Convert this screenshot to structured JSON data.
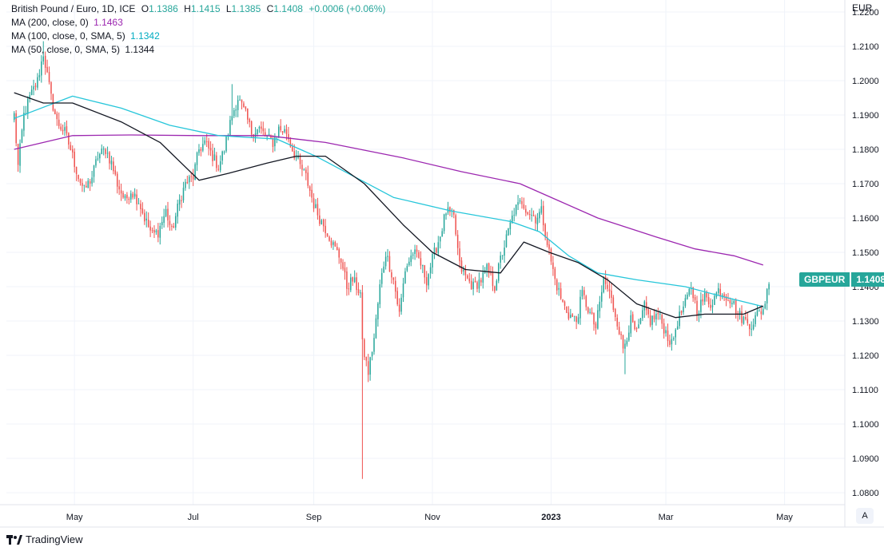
{
  "legend": {
    "title": "British Pound / Euro, 1D, ICE",
    "ohlc": [
      {
        "k": "O",
        "v": "1.1386"
      },
      {
        "k": "H",
        "v": "1.1415"
      },
      {
        "k": "L",
        "v": "1.1385"
      },
      {
        "k": "C",
        "v": "1.1408"
      }
    ],
    "change": "+0.0006 (+0.06%)",
    "ma": [
      {
        "label": "MA (200, close, 0)",
        "value": "1.1463",
        "color": "#9c27b0"
      },
      {
        "label": "MA (100, close, 0, SMA, 5)",
        "value": "1.1342",
        "color": "#26c6da"
      },
      {
        "label": "MA (50, close, 0, SMA, 5)",
        "value": "1.1344",
        "color": "#131722"
      }
    ]
  },
  "currency": "EUR",
  "price_tag": {
    "symbol": "GBPEUR",
    "value": "1.1408"
  },
  "brand": "TradingView",
  "auto_label": "A",
  "chart_data": {
    "type": "candlestick",
    "ylim": [
      1.0765,
      1.2235
    ],
    "y_ticks": [
      "1.2200",
      "1.2100",
      "1.2000",
      "1.1900",
      "1.1800",
      "1.1700",
      "1.1600",
      "1.1500",
      "1.1400",
      "1.1300",
      "1.1200",
      "1.1100",
      "1.1000",
      "1.0900",
      "1.0800"
    ],
    "x_ticks": [
      {
        "label": "May",
        "pos": 31,
        "bold": false
      },
      {
        "label": "Jul",
        "pos": 92,
        "bold": false
      },
      {
        "label": "Sep",
        "pos": 154,
        "bold": false
      },
      {
        "label": "Nov",
        "pos": 215,
        "bold": false
      },
      {
        "label": "2023",
        "pos": 276,
        "bold": true
      },
      {
        "label": "Mar",
        "pos": 335,
        "bold": false
      },
      {
        "label": "May",
        "pos": 396,
        "bold": false
      }
    ],
    "x_range": [
      -4,
      427
    ],
    "anchors": [
      [
        0,
        1.19
      ],
      [
        2,
        1.175
      ],
      [
        5,
        1.19
      ],
      [
        8,
        1.195
      ],
      [
        12,
        1.2
      ],
      [
        15,
        1.208
      ],
      [
        19,
        1.195
      ],
      [
        22,
        1.188
      ],
      [
        26,
        1.185
      ],
      [
        29,
        1.18
      ],
      [
        33,
        1.172
      ],
      [
        36,
        1.168
      ],
      [
        40,
        1.172
      ],
      [
        43,
        1.178
      ],
      [
        47,
        1.18
      ],
      [
        50,
        1.176
      ],
      [
        53,
        1.17
      ],
      [
        57,
        1.165
      ],
      [
        60,
        1.168
      ],
      [
        64,
        1.165
      ],
      [
        67,
        1.16
      ],
      [
        71,
        1.155
      ],
      [
        74,
        1.156
      ],
      [
        78,
        1.162
      ],
      [
        81,
        1.156
      ],
      [
        85,
        1.165
      ],
      [
        88,
        1.17
      ],
      [
        92,
        1.172
      ],
      [
        95,
        1.18
      ],
      [
        98,
        1.182
      ],
      [
        102,
        1.178
      ],
      [
        105,
        1.175
      ],
      [
        108,
        1.18
      ],
      [
        112,
        1.19
      ],
      [
        115,
        1.195
      ],
      [
        119,
        1.19
      ],
      [
        122,
        1.185
      ],
      [
        126,
        1.186
      ],
      [
        129,
        1.184
      ],
      [
        133,
        1.182
      ],
      [
        136,
        1.186
      ],
      [
        140,
        1.185
      ],
      [
        143,
        1.18
      ],
      [
        147,
        1.175
      ],
      [
        150,
        1.172
      ],
      [
        154,
        1.164
      ],
      [
        157,
        1.16
      ],
      [
        161,
        1.156
      ],
      [
        164,
        1.152
      ],
      [
        168,
        1.148
      ],
      [
        171,
        1.14
      ],
      [
        174,
        1.142
      ],
      [
        178,
        1.138
      ],
      [
        179,
        1.123
      ],
      [
        182,
        1.115
      ],
      [
        185,
        1.125
      ],
      [
        188,
        1.14
      ],
      [
        191,
        1.15
      ],
      [
        195,
        1.142
      ],
      [
        198,
        1.132
      ],
      [
        201,
        1.145
      ],
      [
        205,
        1.15
      ],
      [
        208,
        1.148
      ],
      [
        212,
        1.142
      ],
      [
        215,
        1.148
      ],
      [
        219,
        1.155
      ],
      [
        222,
        1.162
      ],
      [
        226,
        1.16
      ],
      [
        229,
        1.146
      ],
      [
        233,
        1.142
      ],
      [
        236,
        1.14
      ],
      [
        240,
        1.142
      ],
      [
        243,
        1.145
      ],
      [
        247,
        1.14
      ],
      [
        250,
        1.148
      ],
      [
        254,
        1.156
      ],
      [
        257,
        1.162
      ],
      [
        261,
        1.165
      ],
      [
        264,
        1.162
      ],
      [
        268,
        1.16
      ],
      [
        271,
        1.162
      ],
      [
        275,
        1.15
      ],
      [
        278,
        1.142
      ],
      [
        282,
        1.135
      ],
      [
        285,
        1.132
      ],
      [
        289,
        1.13
      ],
      [
        292,
        1.138
      ],
      [
        296,
        1.132
      ],
      [
        299,
        1.128
      ],
      [
        303,
        1.142
      ],
      [
        306,
        1.138
      ],
      [
        310,
        1.13
      ],
      [
        313,
        1.122
      ],
      [
        317,
        1.13
      ],
      [
        320,
        1.126
      ],
      [
        324,
        1.134
      ],
      [
        327,
        1.13
      ],
      [
        331,
        1.132
      ],
      [
        334,
        1.128
      ],
      [
        338,
        1.123
      ],
      [
        341,
        1.13
      ],
      [
        345,
        1.135
      ],
      [
        348,
        1.14
      ],
      [
        351,
        1.133
      ],
      [
        355,
        1.137
      ],
      [
        358,
        1.135
      ],
      [
        362,
        1.139
      ],
      [
        365,
        1.138
      ],
      [
        369,
        1.136
      ],
      [
        372,
        1.132
      ],
      [
        376,
        1.13
      ],
      [
        379,
        1.129
      ],
      [
        382,
        1.132
      ],
      [
        385,
        1.1335
      ],
      [
        388,
        1.1408
      ]
    ],
    "extremes": [
      [
        179,
        1.084
      ],
      [
        15,
        1.2115
      ],
      [
        112,
        1.199
      ],
      [
        314,
        1.1145
      ]
    ],
    "series": [
      {
        "name": "MA (200, close, 0)",
        "color": "#9c27b0",
        "values": [
          [
            0,
            1.18
          ],
          [
            30,
            1.184
          ],
          [
            60,
            1.1842
          ],
          [
            95,
            1.184
          ],
          [
            130,
            1.184
          ],
          [
            160,
            1.182
          ],
          [
            200,
            1.1775
          ],
          [
            230,
            1.1735
          ],
          [
            260,
            1.17
          ],
          [
            280,
            1.165
          ],
          [
            300,
            1.16
          ],
          [
            330,
            1.1545
          ],
          [
            350,
            1.151
          ],
          [
            370,
            1.149
          ],
          [
            385,
            1.1463
          ]
        ]
      },
      {
        "name": "MA (100, close, 0, SMA, 5)",
        "color": "#26c6da",
        "values": [
          [
            0,
            1.189
          ],
          [
            30,
            1.1955
          ],
          [
            55,
            1.192
          ],
          [
            80,
            1.187
          ],
          [
            105,
            1.184
          ],
          [
            135,
            1.183
          ],
          [
            155,
            1.178
          ],
          [
            175,
            1.172
          ],
          [
            195,
            1.166
          ],
          [
            225,
            1.162
          ],
          [
            255,
            1.159
          ],
          [
            270,
            1.156
          ],
          [
            285,
            1.149
          ],
          [
            300,
            1.144
          ],
          [
            320,
            1.142
          ],
          [
            345,
            1.14
          ],
          [
            365,
            1.137
          ],
          [
            385,
            1.1342
          ]
        ]
      },
      {
        "name": "MA (50, close, 0, SMA, 5)",
        "color": "#131722",
        "values": [
          [
            0,
            1.1965
          ],
          [
            15,
            1.1935
          ],
          [
            30,
            1.1935
          ],
          [
            55,
            1.188
          ],
          [
            75,
            1.182
          ],
          [
            95,
            1.171
          ],
          [
            110,
            1.173
          ],
          [
            130,
            1.176
          ],
          [
            145,
            1.178
          ],
          [
            160,
            1.178
          ],
          [
            180,
            1.17
          ],
          [
            200,
            1.158
          ],
          [
            215,
            1.15
          ],
          [
            232,
            1.145
          ],
          [
            250,
            1.144
          ],
          [
            262,
            1.153
          ],
          [
            275,
            1.15
          ],
          [
            290,
            1.147
          ],
          [
            305,
            1.142
          ],
          [
            320,
            1.135
          ],
          [
            340,
            1.131
          ],
          [
            355,
            1.132
          ],
          [
            375,
            1.132
          ],
          [
            385,
            1.1344
          ]
        ]
      }
    ]
  }
}
